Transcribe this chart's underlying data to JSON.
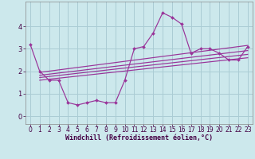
{
  "xlabel": "Windchill (Refroidissement éolien,°C)",
  "background_color": "#cce8ec",
  "grid_color": "#aaccd4",
  "line_color": "#993399",
  "x_hours": [
    0,
    1,
    2,
    3,
    4,
    5,
    6,
    7,
    8,
    9,
    10,
    11,
    12,
    13,
    14,
    15,
    16,
    17,
    18,
    19,
    20,
    21,
    22,
    23
  ],
  "y_values": [
    3.2,
    2.0,
    1.6,
    1.6,
    0.6,
    0.5,
    0.6,
    0.7,
    0.6,
    0.6,
    1.6,
    3.0,
    3.1,
    3.7,
    4.6,
    4.4,
    4.1,
    2.8,
    3.0,
    3.0,
    2.8,
    2.5,
    2.5,
    3.1
  ],
  "reg_lines": [
    {
      "x_start": 1,
      "y_start": 1.95,
      "x_end": 23,
      "y_end": 3.15
    },
    {
      "x_start": 1,
      "y_start": 1.82,
      "x_end": 23,
      "y_end": 2.92
    },
    {
      "x_start": 1,
      "y_start": 1.72,
      "x_end": 23,
      "y_end": 2.75
    },
    {
      "x_start": 1,
      "y_start": 1.6,
      "x_end": 23,
      "y_end": 2.6
    }
  ],
  "ylim": [
    -0.35,
    5.1
  ],
  "yticks": [
    0,
    1,
    2,
    3,
    4
  ],
  "xlim": [
    -0.5,
    23.5
  ],
  "tick_fontsize": 5.5,
  "xlabel_fontsize": 6.0
}
